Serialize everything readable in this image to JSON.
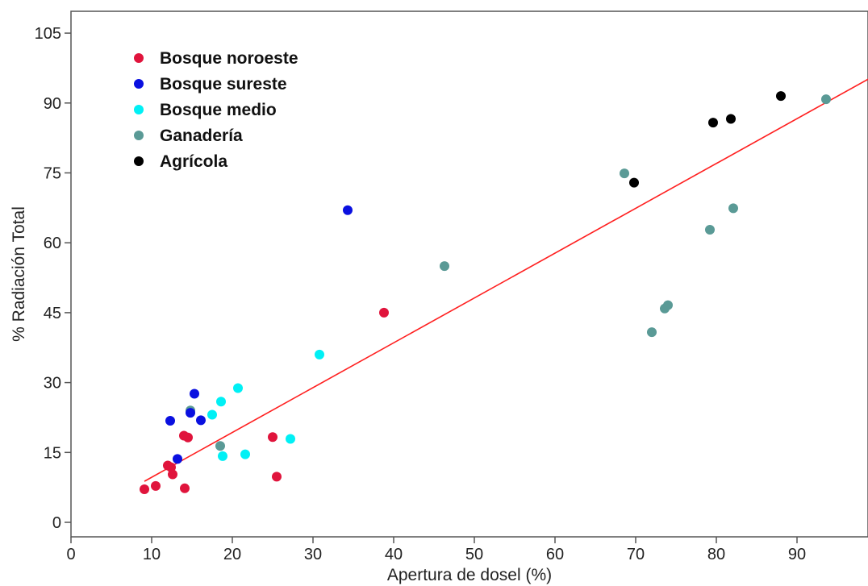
{
  "chart_data": {
    "type": "scatter",
    "xlabel": "Apertura de dosel (%)",
    "ylabel": "% Radiación Total",
    "xlim": [
      0,
      99
    ],
    "ylim": [
      -2,
      110
    ],
    "xticks": [
      0,
      10,
      20,
      30,
      40,
      50,
      60,
      70,
      80,
      90
    ],
    "yticks": [
      0,
      15,
      30,
      45,
      60,
      75,
      90,
      105
    ],
    "grid": false,
    "legend_position": "top-left",
    "series": [
      {
        "name": "Bosque noroeste",
        "color": "#e0143c",
        "points": [
          [
            9.1,
            7.1
          ],
          [
            10.5,
            7.8
          ],
          [
            12.0,
            12.2
          ],
          [
            12.4,
            11.8
          ],
          [
            12.6,
            10.3
          ],
          [
            14.1,
            7.3
          ],
          [
            14.0,
            18.6
          ],
          [
            14.5,
            18.2
          ],
          [
            25.0,
            18.3
          ],
          [
            25.5,
            9.8
          ],
          [
            38.8,
            45.0
          ]
        ]
      },
      {
        "name": "Bosque sureste",
        "color": "#0a10e0",
        "points": [
          [
            12.3,
            21.8
          ],
          [
            13.2,
            13.6
          ],
          [
            14.8,
            23.5
          ],
          [
            15.3,
            27.6
          ],
          [
            16.1,
            21.9
          ],
          [
            34.3,
            67.0
          ]
        ]
      },
      {
        "name": "Bosque medio",
        "color": "#00f0f5",
        "points": [
          [
            17.5,
            23.1
          ],
          [
            18.6,
            25.9
          ],
          [
            18.8,
            14.2
          ],
          [
            20.7,
            28.8
          ],
          [
            21.6,
            14.6
          ],
          [
            27.2,
            17.9
          ],
          [
            30.8,
            36.0
          ]
        ]
      },
      {
        "name": "Ganadería",
        "color": "#5a9a96",
        "points": [
          [
            14.8,
            24.0
          ],
          [
            18.5,
            16.4
          ],
          [
            46.3,
            55.0
          ],
          [
            68.6,
            74.9
          ],
          [
            72.0,
            40.8
          ],
          [
            73.6,
            45.9
          ],
          [
            74.0,
            46.6
          ],
          [
            79.2,
            62.8
          ],
          [
            82.1,
            67.4
          ],
          [
            93.6,
            90.8
          ]
        ]
      },
      {
        "name": "Agrícola",
        "color": "#000000",
        "points": [
          [
            69.8,
            72.9
          ],
          [
            79.6,
            85.8
          ],
          [
            81.8,
            86.6
          ],
          [
            88.0,
            91.5
          ]
        ]
      }
    ],
    "fit_line": {
      "color": "#ff2020",
      "x": [
        9.1,
        99
      ],
      "y": [
        8.8,
        95.3
      ]
    }
  }
}
